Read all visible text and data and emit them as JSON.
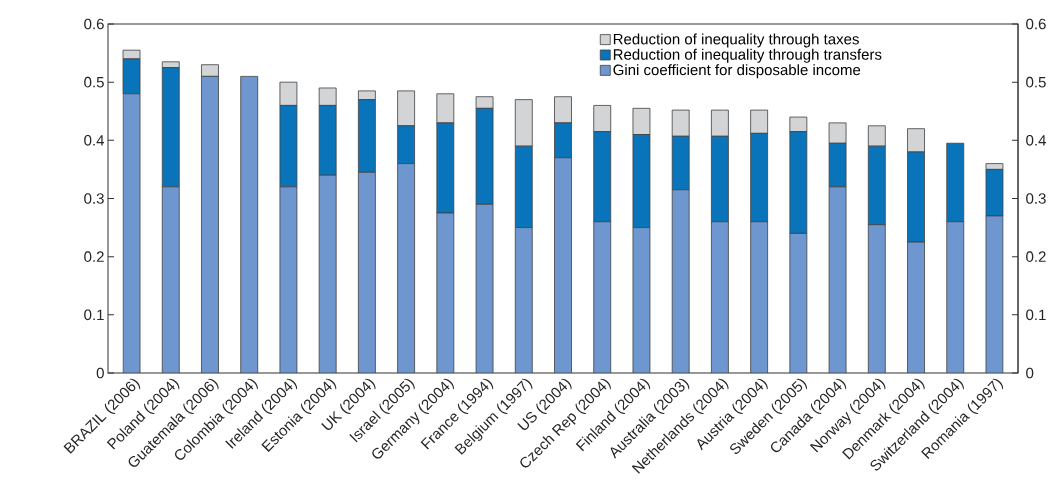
{
  "chart_data": {
    "type": "bar",
    "stacked": true,
    "categories": [
      "BRAZIL (2006)",
      "Poland (2004)",
      "Guatemala (2006)",
      "Colombia (2004)",
      "Ireland (2004)",
      "Estonia (2004)",
      "UK (2004)",
      "Israel (2005)",
      "Germany (2004)",
      "France (1994)",
      "Belgium (1997)",
      "US (2004)",
      "Czech Rep (2004)",
      "Finland (2004)",
      "Australia (2003)",
      "Netherlands (2004)",
      "Austria (2004)",
      "Sweden (2005)",
      "Canada (2004)",
      "Norway (2004)",
      "Denmark (2004)",
      "Switzerland (2004)",
      "Romania (1997)"
    ],
    "series": [
      {
        "name": "Gini coefficient for disposable income",
        "color": "#6f97cf",
        "values": [
          0.48,
          0.32,
          0.51,
          0.51,
          0.32,
          0.34,
          0.345,
          0.36,
          0.275,
          0.29,
          0.25,
          0.37,
          0.26,
          0.25,
          0.315,
          0.26,
          0.26,
          0.24,
          0.32,
          0.255,
          0.225,
          0.26,
          0.27
        ]
      },
      {
        "name": "Reduction of inequality through transfers",
        "color": "#0a74bb",
        "values": [
          0.06,
          0.205,
          0,
          0,
          0.14,
          0.12,
          0.125,
          0.065,
          0.155,
          0.165,
          0.14,
          0.06,
          0.155,
          0.16,
          0.092,
          0.147,
          0.152,
          0.175,
          0.075,
          0.135,
          0.155,
          0.135,
          0.08
        ]
      },
      {
        "name": "Reduction of inequality through taxes",
        "color": "#d3d4d6",
        "values": [
          0.015,
          0.01,
          0.02,
          0,
          0.04,
          0.03,
          0.015,
          0.06,
          0.05,
          0.02,
          0.08,
          0.045,
          0.045,
          0.045,
          0.045,
          0.045,
          0.04,
          0.025,
          0.035,
          0.035,
          0.04,
          0,
          0.01
        ]
      }
    ],
    "ylim": [
      0,
      0.6
    ],
    "yticks": [
      0,
      0.1,
      0.2,
      0.3,
      0.4,
      0.5,
      0.6
    ],
    "y2lim": [
      0,
      0.6
    ],
    "y2ticks": [
      0,
      0.1,
      0.2,
      0.3,
      0.4,
      0.5,
      0.6
    ],
    "legend": "top right"
  }
}
